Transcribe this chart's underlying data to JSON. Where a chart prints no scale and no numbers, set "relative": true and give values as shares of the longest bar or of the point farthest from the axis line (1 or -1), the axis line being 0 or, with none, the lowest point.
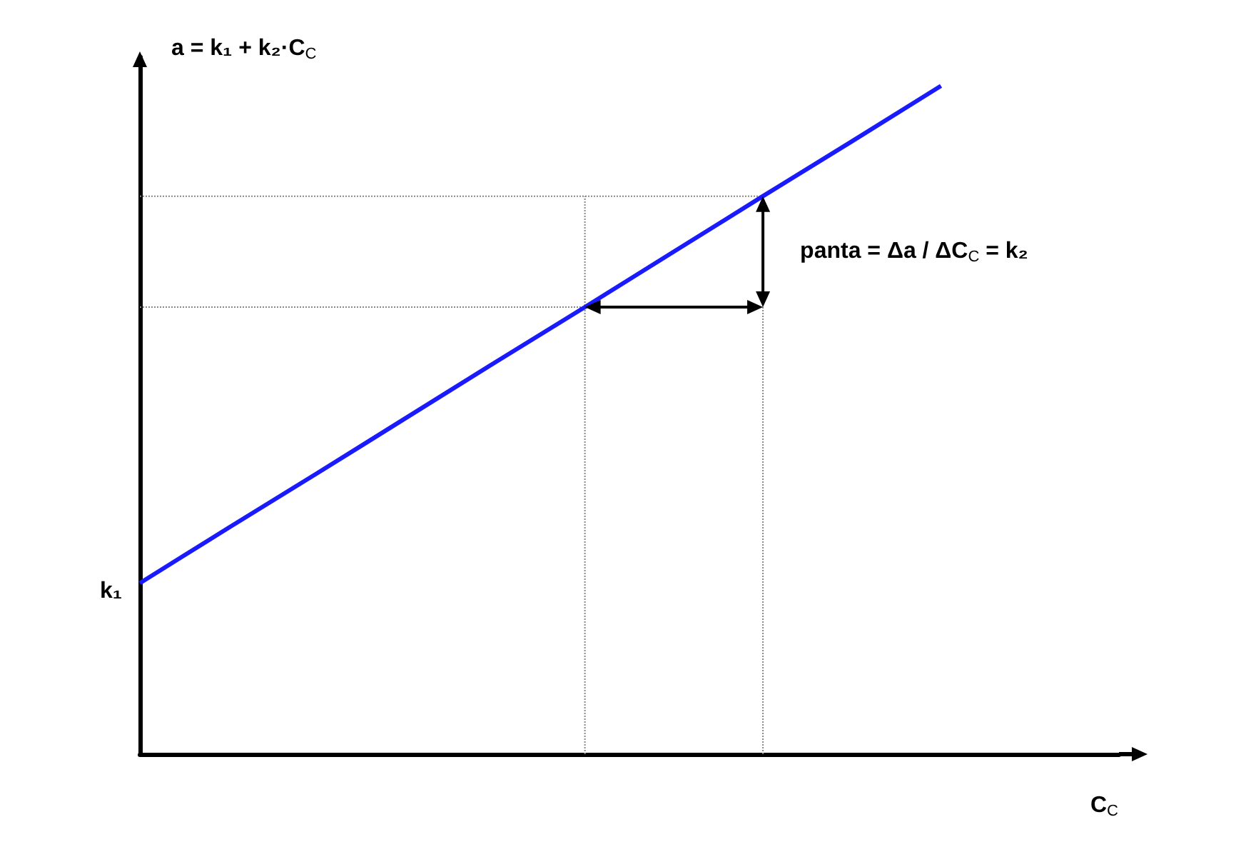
{
  "chart_data": {
    "type": "line",
    "relative": true,
    "xlabel": "C$_{C}$",
    "ylabel": "a = k₁ + k₂·C$_{C}$",
    "categories": [
      null,
      null,
      null,
      null,
      null,
      null,
      null,
      null,
      null,
      null,
      null,
      null
    ],
    "tick_labels": false,
    "marker": "none",
    "line_style": "solid",
    "series": [
      {
        "color": "#1a1aff",
        "values": [
          0.256,
          0.339,
          0.421,
          0.504,
          0.587,
          0.669,
          0.752,
          0.835,
          0.917,
          1,
          null,
          null
        ]
      }
    ],
    "ref_lines": [
      {
        "axis": "y",
        "value": 0.669,
        "color": "#888888",
        "line_style": "dotted"
      },
      {
        "axis": "y",
        "value": 0.835,
        "color": "#888888",
        "line_style": "dotted"
      }
    ],
    "annotations": [
      "k₁",
      "panta = Δa / ΔC$_{C}$ = k₂"
    ]
  }
}
